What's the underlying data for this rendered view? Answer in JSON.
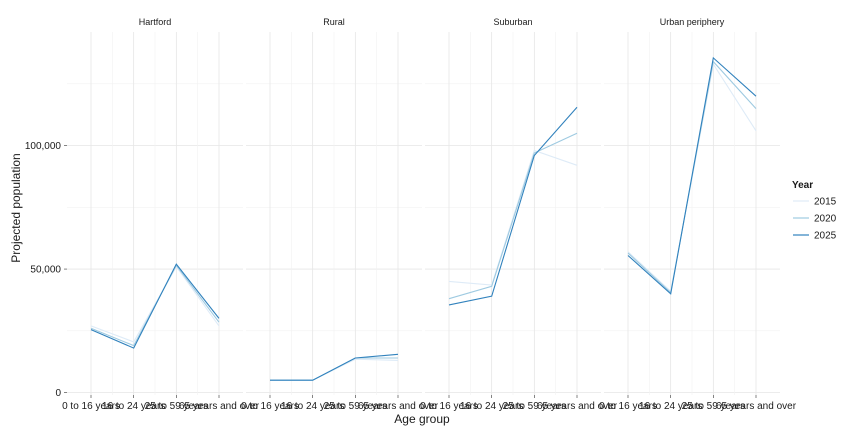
{
  "chart_data": {
    "type": "line",
    "xlabel": "Age group",
    "ylabel": "Projected population",
    "ylim": [
      -1000,
      146000
    ],
    "y_ticks": [
      0,
      50000,
      100000
    ],
    "y_tick_labels": [
      "0",
      "50,000",
      "100,000"
    ],
    "categories": [
      "0 to 16 years",
      "16 to 24 years",
      "25 to 59 years",
      "65 years and over"
    ],
    "grid": true,
    "legend": {
      "title": "Year",
      "placement": "right",
      "entries": [
        "2015",
        "2020",
        "2025"
      ]
    },
    "series_colors": {
      "2015": "#deebf7",
      "2020": "#9ecae1",
      "2025": "#3182bd"
    },
    "facets": [
      {
        "title": "Hartford",
        "series": [
          {
            "name": "2015",
            "values": [
              27000,
              20500,
              51000,
              27000
            ]
          },
          {
            "name": "2020",
            "values": [
              26000,
              19000,
              51500,
              28500
            ]
          },
          {
            "name": "2025",
            "values": [
              25500,
              18000,
              52000,
              30000
            ]
          }
        ]
      },
      {
        "title": "Rural",
        "series": [
          {
            "name": "2015",
            "values": [
              5000,
              5000,
              13500,
              13000
            ]
          },
          {
            "name": "2020",
            "values": [
              5000,
              5000,
              14000,
              14000
            ]
          },
          {
            "name": "2025",
            "values": [
              5000,
              5000,
              14000,
              15500
            ]
          }
        ]
      },
      {
        "title": "Suburban",
        "series": [
          {
            "name": "2015",
            "values": [
              45000,
              43500,
              98000,
              92000
            ]
          },
          {
            "name": "2020",
            "values": [
              38000,
              43000,
              97000,
              105000
            ]
          },
          {
            "name": "2025",
            "values": [
              35500,
              39000,
              96000,
              115500
            ]
          }
        ]
      },
      {
        "title": "Urban periphery",
        "series": [
          {
            "name": "2015",
            "values": [
              57000,
              41000,
              133000,
              106000
            ]
          },
          {
            "name": "2020",
            "values": [
              56500,
              40500,
              134000,
              115000
            ]
          },
          {
            "name": "2025",
            "values": [
              55500,
              40000,
              135500,
              120000
            ]
          }
        ]
      }
    ]
  }
}
